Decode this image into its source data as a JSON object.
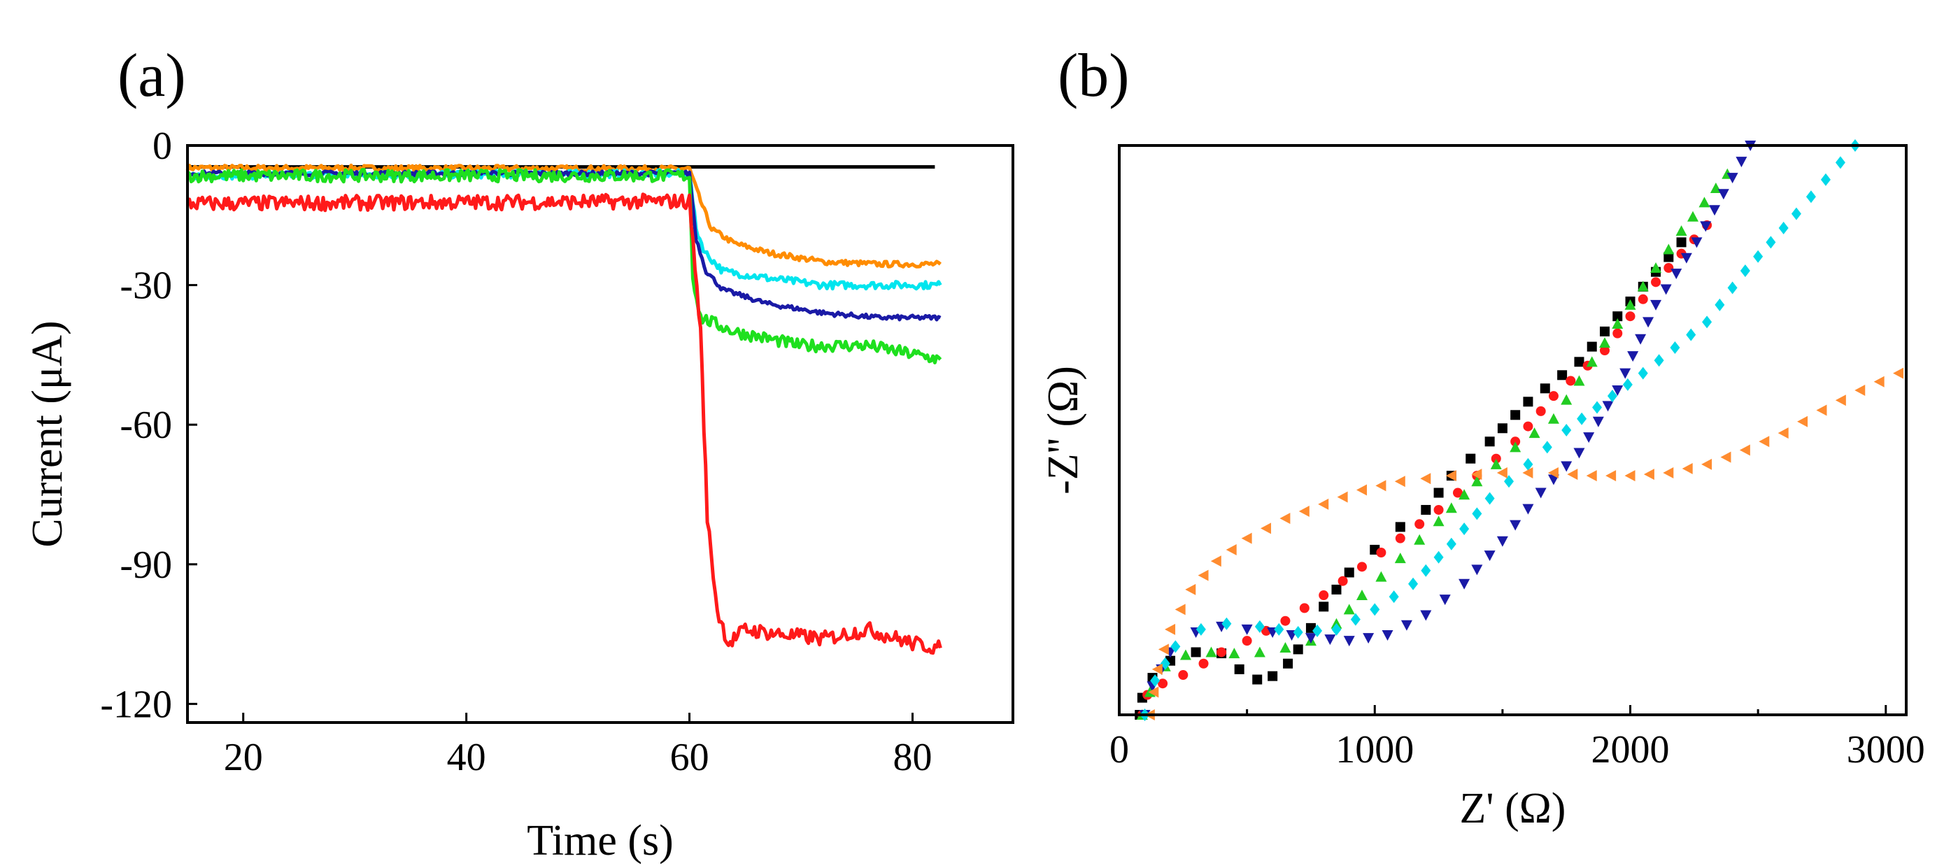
{
  "figure": {
    "panel_a_label": "(a)",
    "panel_b_label": "(b)"
  },
  "chart_data": [
    {
      "type": "line",
      "panel": "(a)",
      "title": "",
      "xlabel": "Time (s)",
      "ylabel": "Current (μA)",
      "xlim": [
        15,
        89
      ],
      "ylim": [
        -124,
        0
      ],
      "xticks": [
        20,
        40,
        60,
        80
      ],
      "yticks": [
        0,
        -30,
        -60,
        -90,
        -120
      ],
      "grid": false,
      "legend": "none",
      "series": [
        {
          "name": "black",
          "color": "#000000",
          "points": [
            [
              15,
              -4.6
            ],
            [
              60,
              -4.6
            ],
            [
              82,
              -4.6
            ]
          ],
          "noise": 0
        },
        {
          "name": "orange",
          "color": "#ff8c00",
          "points": [
            [
              15,
              -4.8
            ],
            [
              60,
              -5.0
            ],
            [
              61,
              -12
            ],
            [
              62,
              -18
            ],
            [
              64,
              -21
            ],
            [
              67,
              -23
            ],
            [
              72,
              -25
            ],
            [
              77,
              -25.5
            ],
            [
              82.5,
              -25.5
            ]
          ],
          "noise": 0.6
        },
        {
          "name": "cyan",
          "color": "#00e5ee",
          "points": [
            [
              15,
              -6.5
            ],
            [
              60,
              -6.0
            ],
            [
              60.6,
              -18
            ],
            [
              61.4,
              -23
            ],
            [
              63,
              -27
            ],
            [
              67,
              -28.5
            ],
            [
              72,
              -30
            ],
            [
              82.5,
              -30
            ]
          ],
          "noise": 0.8
        },
        {
          "name": "blue",
          "color": "#1a1aa6",
          "points": [
            [
              15,
              -6.0
            ],
            [
              60,
              -6.0
            ],
            [
              60.6,
              -20
            ],
            [
              61.5,
              -27
            ],
            [
              63,
              -31
            ],
            [
              67,
              -34
            ],
            [
              72,
              -36
            ],
            [
              77,
              -37
            ],
            [
              82.5,
              -37
            ]
          ],
          "noise": 0.5
        },
        {
          "name": "green",
          "color": "#1ee01e",
          "points": [
            [
              15,
              -6.5
            ],
            [
              60,
              -6.5
            ],
            [
              60.3,
              -28
            ],
            [
              61,
              -37
            ],
            [
              64,
              -40
            ],
            [
              70,
              -43
            ],
            [
              76,
              -43
            ],
            [
              82.5,
              -46
            ]
          ],
          "noise": 1.3
        },
        {
          "name": "red",
          "color": "#ff1a1a",
          "points": [
            [
              15,
              -12.5
            ],
            [
              60,
              -12.0
            ],
            [
              61,
              -40
            ],
            [
              61.6,
              -80
            ],
            [
              62.5,
              -100
            ],
            [
              63.5,
              -107
            ],
            [
              65,
              -104
            ],
            [
              68,
              -105
            ],
            [
              72,
              -106
            ],
            [
              76,
              -104
            ],
            [
              80,
              -107
            ],
            [
              82.5,
              -108
            ]
          ],
          "noise": 1.6
        }
      ]
    },
    {
      "type": "scatter",
      "panel": "(b)",
      "title": "",
      "xlabel": "Z' (Ω)",
      "ylabel": "-Z'' (Ω)",
      "xlim": [
        0,
        3080
      ],
      "ylim": [
        0,
        1000
      ],
      "xticks": [
        0,
        1000,
        2000,
        3000
      ],
      "yticks": [],
      "grid": false,
      "legend": "none",
      "series": [
        {
          "name": "black squares",
          "color": "#000000",
          "marker": "square",
          "points": [
            [
              80,
              0
            ],
            [
              90,
              30
            ],
            [
              130,
              65
            ],
            [
              200,
              95
            ],
            [
              300,
              110
            ],
            [
              400,
              108
            ],
            [
              470,
              80
            ],
            [
              540,
              62
            ],
            [
              600,
              68
            ],
            [
              660,
              90
            ],
            [
              700,
              115
            ],
            [
              800,
              190
            ],
            [
              900,
              250
            ],
            [
              1000,
              290
            ],
            [
              1100,
              330
            ],
            [
              1200,
              360
            ],
            [
              1300,
              420
            ],
            [
              1450,
              480
            ],
            [
              1600,
              550
            ],
            [
              1800,
              620
            ],
            [
              1950,
              700
            ],
            [
              2200,
              830
            ]
          ]
        },
        {
          "name": "red circles",
          "color": "#ff1a1a",
          "marker": "circle",
          "points": [
            [
              90,
              0
            ],
            [
              110,
              35
            ],
            [
              170,
              55
            ],
            [
              250,
              70
            ],
            [
              330,
              90
            ],
            [
              400,
              110
            ],
            [
              500,
              130
            ],
            [
              650,
              165
            ],
            [
              800,
              210
            ],
            [
              950,
              260
            ],
            [
              1100,
              310
            ],
            [
              1250,
              360
            ],
            [
              1400,
              420
            ],
            [
              1550,
              480
            ],
            [
              1700,
              560
            ],
            [
              1900,
              640
            ],
            [
              2100,
              760
            ],
            [
              2300,
              860
            ]
          ]
        },
        {
          "name": "green triangles",
          "color": "#22cc22",
          "marker": "triangle-up",
          "points": [
            [
              90,
              0
            ],
            [
              120,
              40
            ],
            [
              180,
              85
            ],
            [
              260,
              105
            ],
            [
              360,
              110
            ],
            [
              450,
              108
            ],
            [
              550,
              110
            ],
            [
              650,
              118
            ],
            [
              750,
              130
            ],
            [
              850,
              160
            ],
            [
              950,
              210
            ],
            [
              1100,
              275
            ],
            [
              1250,
              340
            ],
            [
              1400,
              410
            ],
            [
              1550,
              470
            ],
            [
              1700,
              520
            ],
            [
              1850,
              620
            ],
            [
              2000,
              720
            ],
            [
              2200,
              850
            ],
            [
              2380,
              950
            ]
          ]
        },
        {
          "name": "blue triangles",
          "color": "#1a1aa6",
          "marker": "triangle-down",
          "points": [
            [
              100,
              0
            ],
            [
              130,
              50
            ],
            [
              200,
              110
            ],
            [
              300,
              145
            ],
            [
              400,
              155
            ],
            [
              500,
              150
            ],
            [
              600,
              145
            ],
            [
              750,
              135
            ],
            [
              900,
              130
            ],
            [
              1050,
              140
            ],
            [
              1200,
              175
            ],
            [
              1350,
              230
            ],
            [
              1500,
              305
            ],
            [
              1650,
              390
            ],
            [
              1800,
              460
            ],
            [
              1950,
              570
            ],
            [
              2100,
              720
            ],
            [
              2260,
              830
            ],
            [
              2470,
              1000
            ]
          ]
        },
        {
          "name": "cyan diamonds",
          "color": "#00d8e8",
          "marker": "diamond",
          "points": [
            [
              100,
              0
            ],
            [
              140,
              60
            ],
            [
              220,
              120
            ],
            [
              320,
              150
            ],
            [
              420,
              160
            ],
            [
              550,
              155
            ],
            [
              700,
              145
            ],
            [
              850,
              150
            ],
            [
              1000,
              185
            ],
            [
              1150,
              230
            ],
            [
              1300,
              300
            ],
            [
              1450,
              380
            ],
            [
              1600,
              440
            ],
            [
              1750,
              500
            ],
            [
              2050,
              600
            ],
            [
              2300,
              690
            ],
            [
              2450,
              780
            ],
            [
              2650,
              880
            ],
            [
              2880,
              1000
            ]
          ]
        },
        {
          "name": "orange triangles",
          "color": "#ff8c30",
          "marker": "triangle-left",
          "points": [
            [
              120,
              0
            ],
            [
              150,
              80
            ],
            [
              200,
              150
            ],
            [
              280,
              220
            ],
            [
              380,
              270
            ],
            [
              500,
              310
            ],
            [
              650,
              345
            ],
            [
              800,
              370
            ],
            [
              950,
              395
            ],
            [
              1100,
              410
            ],
            [
              1300,
              420
            ],
            [
              1500,
              425
            ],
            [
              1700,
              425
            ],
            [
              1850,
              420
            ],
            [
              2000,
              420
            ],
            [
              2150,
              425
            ],
            [
              2300,
              440
            ],
            [
              2450,
              465
            ],
            [
              2600,
              495
            ],
            [
              2750,
              535
            ],
            [
              2900,
              570
            ],
            [
              3050,
              600
            ]
          ]
        }
      ]
    }
  ]
}
